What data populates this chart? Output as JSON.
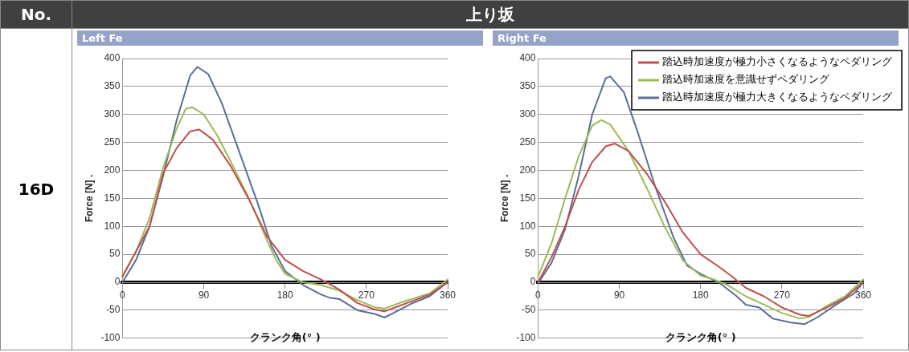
{
  "chart_data": [
    {
      "type": "line",
      "title": "Left Fe",
      "xlabel": "クランク角(° )",
      "ylabel": "Force [N] .",
      "annotations": [
        "No.",
        "上り坂",
        "16D"
      ],
      "xlim": [
        0,
        360
      ],
      "xticks": [
        0,
        90,
        180,
        270,
        360
      ],
      "ylim": [
        -100,
        400
      ],
      "yticks": [
        -100,
        -50,
        0,
        50,
        100,
        150,
        200,
        250,
        300,
        350,
        400
      ],
      "grid": "y",
      "legend": false,
      "marker": "none",
      "line_style": "solid",
      "series": [
        {
          "color": "#c0504d",
          "x": [
            0,
            30,
            45,
            60,
            75,
            85,
            100,
            120,
            140,
            160,
            180,
            200,
            220,
            240,
            260,
            280,
            290,
            310,
            340,
            360
          ],
          "values": [
            10,
            100,
            195,
            240,
            270,
            273,
            255,
            207,
            148,
            82,
            40,
            20,
            5,
            -13,
            -37,
            -49,
            -52,
            -40,
            -22,
            0
          ]
        },
        {
          "color": "#9bbb59",
          "x": [
            0,
            15,
            30,
            45,
            60,
            70,
            77,
            90,
            105,
            120,
            140,
            160,
            170,
            180,
            200,
            220,
            240,
            260,
            280,
            290,
            310,
            340,
            360
          ],
          "values": [
            12,
            55,
            115,
            205,
            275,
            310,
            313,
            300,
            262,
            215,
            150,
            75,
            40,
            15,
            0,
            -5,
            -15,
            -32,
            -45,
            -47,
            -35,
            -20,
            5
          ]
        },
        {
          "color": "#5b6f96",
          "x": [
            0,
            15,
            30,
            45,
            60,
            75,
            83,
            95,
            110,
            130,
            150,
            165,
            180,
            200,
            220,
            230,
            240,
            260,
            280,
            290,
            300,
            320,
            340,
            360
          ],
          "values": [
            0,
            40,
            100,
            190,
            290,
            370,
            385,
            372,
            320,
            230,
            140,
            65,
            20,
            -5,
            -22,
            -28,
            -30,
            -50,
            -57,
            -63,
            -55,
            -38,
            -25,
            0
          ]
        }
      ]
    },
    {
      "type": "line",
      "title": "Right Fe",
      "xlabel": "クランク角(° )",
      "ylabel": "Force [N] .",
      "xlim": [
        0,
        360
      ],
      "xticks": [
        0,
        90,
        180,
        270,
        360
      ],
      "ylim": [
        -100,
        400
      ],
      "yticks": [
        -100,
        -50,
        0,
        50,
        100,
        150,
        200,
        250,
        300,
        350,
        400
      ],
      "grid": "y",
      "legend": "top right",
      "marker": "none",
      "line_style": "solid",
      "series": [
        {
          "name": "踏込時加速度が極力小さくなるようなペダリング",
          "color": "#c0504d",
          "x": [
            0,
            15,
            30,
            45,
            60,
            75,
            85,
            100,
            120,
            140,
            160,
            180,
            200,
            215,
            230,
            250,
            270,
            290,
            300,
            320,
            340,
            360
          ],
          "values": [
            0,
            45,
            100,
            165,
            215,
            243,
            248,
            235,
            195,
            145,
            90,
            50,
            28,
            10,
            -10,
            -25,
            -45,
            -58,
            -60,
            -45,
            -28,
            0
          ]
        },
        {
          "name": "踏込時加速度を意識せずペダリング",
          "color": "#9bbb59",
          "x": [
            0,
            15,
            30,
            45,
            60,
            70,
            80,
            100,
            120,
            140,
            160,
            180,
            195,
            210,
            230,
            250,
            270,
            290,
            300,
            320,
            340,
            360
          ],
          "values": [
            10,
            70,
            150,
            225,
            280,
            290,
            282,
            235,
            170,
            100,
            40,
            12,
            5,
            -5,
            -25,
            -40,
            -55,
            -65,
            -62,
            -42,
            -25,
            5
          ]
        },
        {
          "name": "踏込時加速度が極力大きくなるようなペダリング",
          "color": "#5b6f96",
          "x": [
            0,
            15,
            30,
            45,
            60,
            75,
            80,
            95,
            110,
            130,
            150,
            165,
            180,
            200,
            220,
            230,
            245,
            260,
            280,
            295,
            310,
            330,
            350,
            360
          ],
          "values": [
            -2,
            35,
            95,
            190,
            300,
            365,
            368,
            340,
            270,
            170,
            80,
            30,
            15,
            0,
            -25,
            -40,
            -45,
            -65,
            -72,
            -75,
            -62,
            -40,
            -20,
            0
          ]
        }
      ]
    }
  ]
}
